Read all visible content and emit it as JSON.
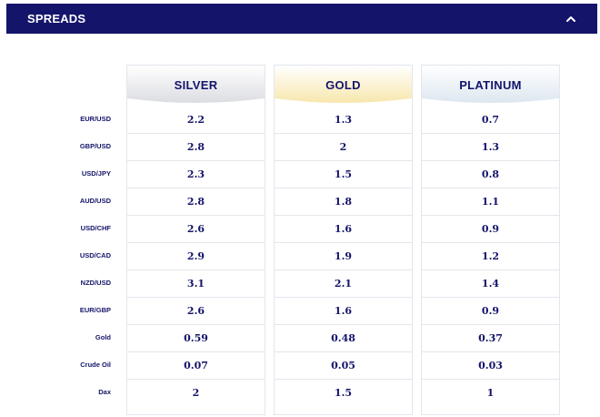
{
  "header": {
    "title": "SPREADS"
  },
  "columns": [
    {
      "name": "SILVER",
      "gradient_top": "#dcdde2",
      "values": [
        "2.2",
        "2.8",
        "2.3",
        "2.8",
        "2.6",
        "2.9",
        "3.1",
        "2.6",
        "0.59",
        "0.07",
        "2"
      ]
    },
    {
      "name": "GOLD",
      "gradient_top": "#f7e7ad",
      "values": [
        "1.3",
        "2",
        "1.5",
        "1.8",
        "1.6",
        "1.9",
        "2.1",
        "1.6",
        "0.48",
        "0.05",
        "1.5"
      ]
    },
    {
      "name": "PLATINUM",
      "gradient_top": "#dde7f0",
      "values": [
        "0.7",
        "1.3",
        "0.8",
        "1.1",
        "0.9",
        "1.2",
        "1.4",
        "0.9",
        "0.37",
        "0.03",
        "1"
      ]
    }
  ],
  "rows": [
    "EUR/USD",
    "GBP/USD",
    "USD/JPY",
    "AUD/USD",
    "USD/CHF",
    "USD/CAD",
    "NZD/USD",
    "EUR/GBP",
    "Gold",
    "Crude Oil",
    "Dax"
  ],
  "colors": {
    "header_bg": "#14146b",
    "text": "#14146b",
    "border": "#e3e6ec"
  },
  "icons": {
    "collapse": "chevron-up-icon"
  }
}
